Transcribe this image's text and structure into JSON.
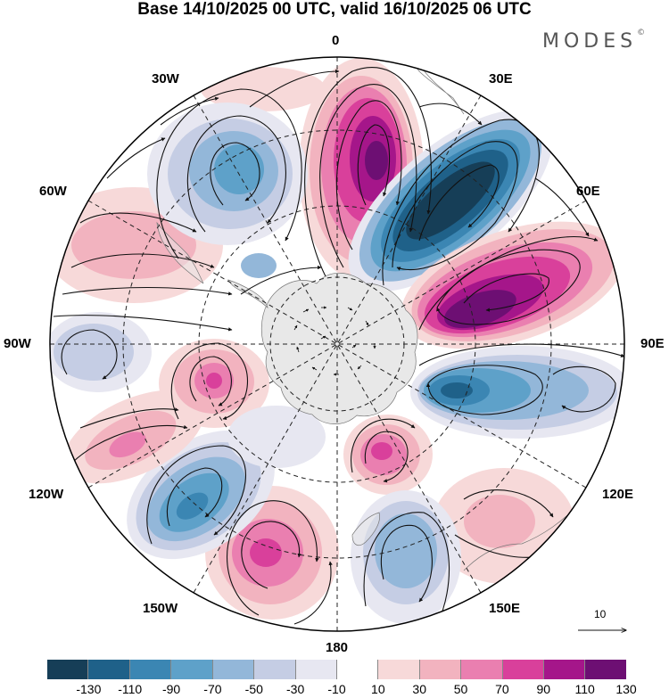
{
  "title": "Base 14/10/2025 00 UTC, valid 16/10/2025 06 UTC",
  "brand": {
    "name": "MODES",
    "mark": "©"
  },
  "longitude_labels": {
    "lon_0": "0",
    "lon_30e": "30E",
    "lon_60e": "60E",
    "lon_90e": "90E",
    "lon_120e": "120E",
    "lon_150e": "150E",
    "lon_180": "180",
    "lon_150w": "150W",
    "lon_120w": "120W",
    "lon_90w": "90W",
    "lon_60w": "60W",
    "lon_30w": "30W"
  },
  "reference_vector": {
    "label": "10"
  },
  "colorbar": {
    "tick_labels": [
      "-130",
      "-110",
      "-90",
      "-70",
      "-50",
      "-30",
      "-10",
      "10",
      "30",
      "50",
      "70",
      "90",
      "110",
      "130"
    ],
    "colors": [
      "#163e57",
      "#1f6189",
      "#3b86b3",
      "#5ea1c9",
      "#93b7d9",
      "#c5cde4",
      "#e7e7f1",
      "#ffffff",
      "#f7d9d9",
      "#f2b3bf",
      "#ea7fb0",
      "#d9409b",
      "#a5168a",
      "#6d0f73"
    ]
  },
  "map": {
    "projection": "south polar stereographic",
    "anomaly_centers": [
      {
        "id": "pos-0e",
        "value": 110
      },
      {
        "id": "neg-35e",
        "value": -130
      },
      {
        "id": "pos-75e",
        "value": 130
      },
      {
        "id": "neg-100e",
        "value": -90
      },
      {
        "id": "pos-135e",
        "value": 90
      },
      {
        "id": "pos-120e-far",
        "value": 50
      },
      {
        "id": "neg-155e",
        "value": -50
      },
      {
        "id": "pos-160w",
        "value": 90
      },
      {
        "id": "neg-130w",
        "value": -90
      },
      {
        "id": "pos-110w",
        "value": 50
      },
      {
        "id": "pos-115w-inner",
        "value": 70
      },
      {
        "id": "neg-90w",
        "value": -30
      },
      {
        "id": "pos-60w",
        "value": 30
      },
      {
        "id": "neg-30w",
        "value": -70
      }
    ]
  }
}
